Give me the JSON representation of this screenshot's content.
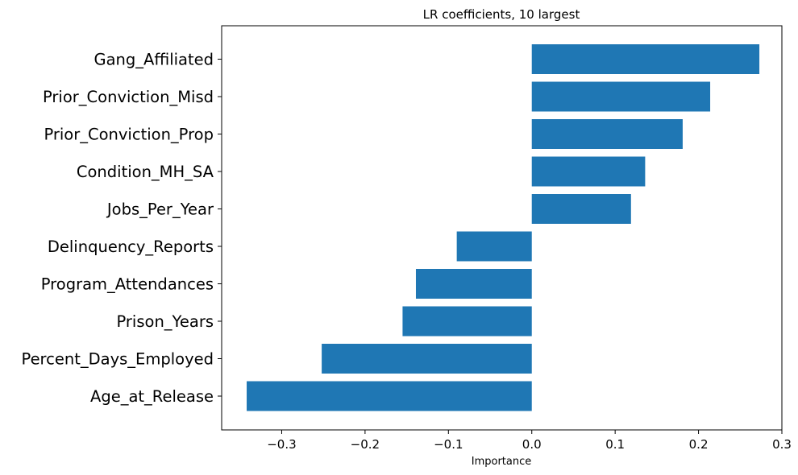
{
  "chart_data": {
    "type": "bar",
    "orientation": "horizontal",
    "title": "LR coefficients, 10 largest",
    "xlabel": "Importance",
    "ylabel": "",
    "xlim": [
      -0.372,
      0.3
    ],
    "xticks": [
      -0.3,
      -0.2,
      -0.1,
      0.0,
      0.1,
      0.2,
      0.3
    ],
    "xtick_labels": [
      "−0.3",
      "−0.2",
      "−0.1",
      "0.0",
      "0.1",
      "0.2",
      "0.3"
    ],
    "grid": false,
    "bar_color": "#1f77b4",
    "categories": [
      "Gang_Affiliated",
      "Prior_Conviction_Misd",
      "Prior_Conviction_Prop",
      "Condition_MH_SA",
      "Jobs_Per_Year",
      "Delinquency_Reports",
      "Program_Attendances",
      "Prison_Years",
      "Percent_Days_Employed",
      "Age_at_Release"
    ],
    "values": [
      0.273,
      0.214,
      0.181,
      0.136,
      0.119,
      -0.09,
      -0.139,
      -0.155,
      -0.252,
      -0.342
    ]
  }
}
